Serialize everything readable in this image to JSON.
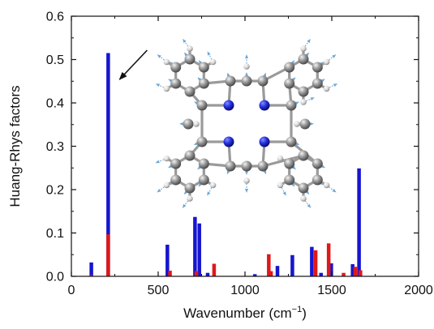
{
  "chart_data": {
    "type": "bar",
    "title": "",
    "xlabel_main": "Wavenumber (cm",
    "xlabel_sup": "−1",
    "xlabel_close": ")",
    "ylabel": "Huang-Rhys factors",
    "xlim": [
      0,
      2000
    ],
    "ylim": [
      0,
      0.6
    ],
    "xticks": [
      0,
      500,
      1000,
      1500,
      2000
    ],
    "yticks": [
      0,
      0.1,
      0.2,
      0.3,
      0.4,
      0.5,
      0.6
    ],
    "ytick_labels": [
      "0.0",
      "0.1",
      "0.2",
      "0.3",
      "0.4",
      "0.5",
      "0.6"
    ],
    "grid": false,
    "legend": "none",
    "colors": {
      "blue": "#1515d0",
      "red": "#e01818"
    },
    "series": [
      {
        "color_key": "blue",
        "points": [
          {
            "x": 115,
            "y": 0.032
          },
          {
            "x": 212,
            "y": 0.515
          },
          {
            "x": 553,
            "y": 0.073
          },
          {
            "x": 712,
            "y": 0.137
          },
          {
            "x": 737,
            "y": 0.122
          },
          {
            "x": 785,
            "y": 0.008
          },
          {
            "x": 1057,
            "y": 0.005
          },
          {
            "x": 1187,
            "y": 0.024
          },
          {
            "x": 1273,
            "y": 0.049
          },
          {
            "x": 1385,
            "y": 0.068
          },
          {
            "x": 1438,
            "y": 0.008
          },
          {
            "x": 1497,
            "y": 0.03
          },
          {
            "x": 1620,
            "y": 0.028
          },
          {
            "x": 1657,
            "y": 0.249
          }
        ]
      },
      {
        "color_key": "red",
        "points": [
          {
            "x": 115,
            "y": 0.003
          },
          {
            "x": 212,
            "y": 0.097
          },
          {
            "x": 568,
            "y": 0.013
          },
          {
            "x": 720,
            "y": 0.012
          },
          {
            "x": 822,
            "y": 0.029
          },
          {
            "x": 1137,
            "y": 0.051
          },
          {
            "x": 1150,
            "y": 0.012
          },
          {
            "x": 1407,
            "y": 0.06
          },
          {
            "x": 1482,
            "y": 0.076
          },
          {
            "x": 1568,
            "y": 0.008
          },
          {
            "x": 1635,
            "y": 0.022
          },
          {
            "x": 1665,
            "y": 0.014
          }
        ]
      }
    ],
    "annotation": {
      "arrow_target_x": 212
    }
  }
}
